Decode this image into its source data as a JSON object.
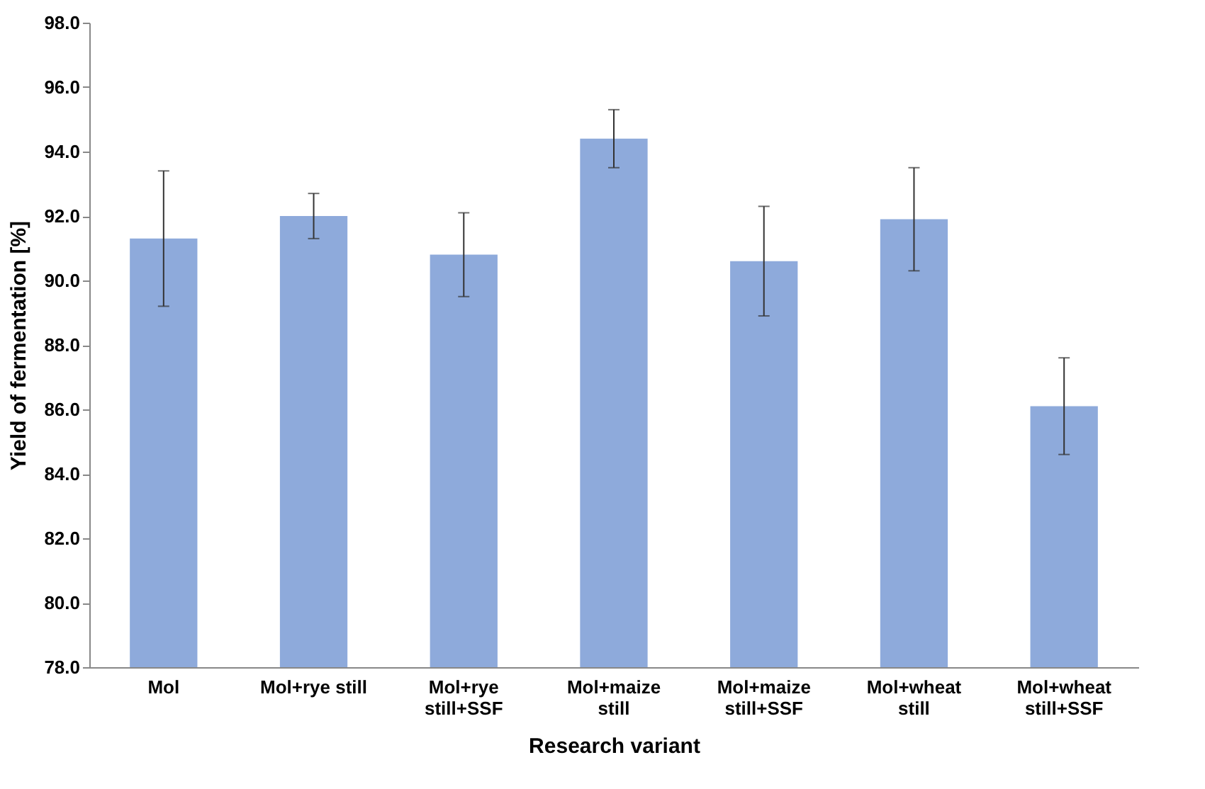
{
  "chart_data": {
    "type": "bar",
    "xlabel": "Research variant",
    "ylabel": "Yield of fermentation [%]",
    "categories": [
      "Mol",
      "Mol+rye still",
      "Mol+rye still+SSF",
      "Mol+maize still",
      "Mol+maize still+SSF",
      "Mol+wheat still",
      "Mol+wheat still+SSF"
    ],
    "values": [
      91.3,
      92.0,
      90.8,
      94.4,
      90.6,
      91.9,
      86.1
    ],
    "errors": [
      2.1,
      0.7,
      1.3,
      0.9,
      1.7,
      1.6,
      1.5
    ],
    "color": "#8eaadb",
    "ylim": [
      78,
      98
    ],
    "yticks": [
      {
        "value": 78,
        "label": "78.0"
      },
      {
        "value": 80,
        "label": "80.0"
      },
      {
        "value": 82,
        "label": "82.0"
      },
      {
        "value": 84,
        "label": "84.0"
      },
      {
        "value": 86,
        "label": "86.0"
      },
      {
        "value": 88,
        "label": "88.0"
      },
      {
        "value": 90,
        "label": "90.0"
      },
      {
        "value": 92,
        "label": "92.0"
      },
      {
        "value": 94,
        "label": "94.0"
      },
      {
        "value": 96,
        "label": "96.0"
      },
      {
        "value": 98,
        "label": "98.0"
      }
    ],
    "grid": false
  }
}
